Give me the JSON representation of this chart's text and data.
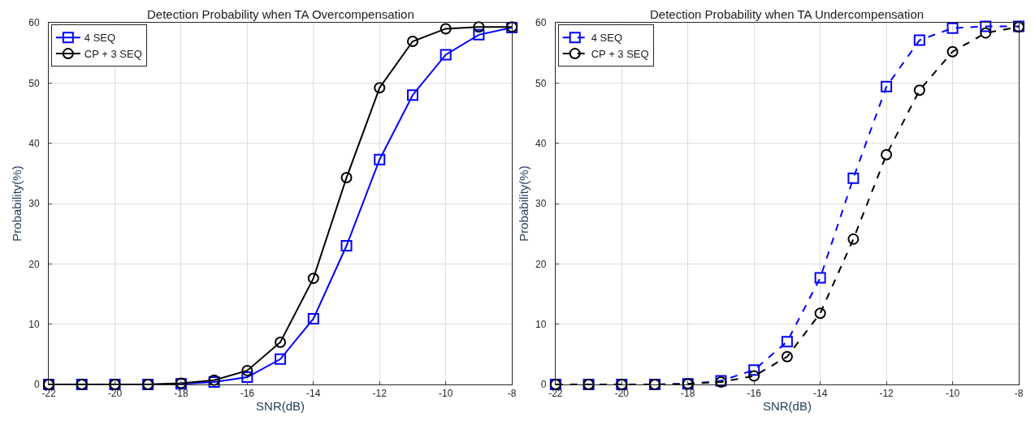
{
  "chart_data": [
    {
      "type": "line",
      "title": "Detection Probability when TA Overcompensation",
      "xlabel": "SNR(dB)",
      "ylabel": "Probability(%)",
      "x": [
        -22,
        -21,
        -20,
        -19,
        -18,
        -17,
        -16,
        -15,
        -14,
        -13,
        -12,
        -11,
        -10,
        -9,
        -8
      ],
      "series": [
        {
          "name": "4 SEQ",
          "color": "#0000ff",
          "marker": "square",
          "values": [
            0,
            0,
            0,
            0,
            0.1,
            0.4,
            1.2,
            4.2,
            10.9,
            23,
            37.3,
            48,
            54.7,
            58,
            59.2
          ]
        },
        {
          "name": "CP + 3 SEQ",
          "color": "#000000",
          "marker": "circle",
          "values": [
            0,
            0,
            0,
            0,
            0.2,
            0.7,
            2.3,
            7,
            17.6,
            34.3,
            49.2,
            56.9,
            59,
            59.3,
            59.3
          ]
        }
      ],
      "xlim": [
        -22,
        -8
      ],
      "xticks": [
        -22,
        -20,
        -18,
        -16,
        -14,
        -12,
        -10,
        -8
      ],
      "ylim": [
        0,
        60
      ],
      "yticks": [
        0,
        10,
        20,
        30,
        40,
        50,
        60
      ],
      "grid": true,
      "legend": "top left",
      "line_style": "solid"
    },
    {
      "type": "line",
      "title": "Detection Probability when TA Undercompensation",
      "xlabel": "SNR(dB)",
      "ylabel": "Probability(%)",
      "x": [
        -22,
        -21,
        -20,
        -19,
        -18,
        -17,
        -16,
        -15,
        -14,
        -13,
        -12,
        -11,
        -10,
        -9,
        -8
      ],
      "series": [
        {
          "name": "4 SEQ",
          "color": "#0000ff",
          "marker": "square",
          "values": [
            0,
            0,
            0,
            0,
            0.1,
            0.6,
            2.4,
            7.1,
            17.7,
            34.2,
            49.4,
            57.1,
            59.1,
            59.4,
            59.4
          ]
        },
        {
          "name": "CP + 3 SEQ",
          "color": "#000000",
          "marker": "circle",
          "values": [
            0,
            0,
            0,
            0,
            0.1,
            0.4,
            1.4,
            4.6,
            11.8,
            24.1,
            38.1,
            48.8,
            55.2,
            58.3,
            59.3
          ]
        }
      ],
      "xlim": [
        -22,
        -8
      ],
      "xticks": [
        -22,
        -20,
        -18,
        -16,
        -14,
        -12,
        -10,
        -8
      ],
      "ylim": [
        0,
        60
      ],
      "yticks": [
        0,
        10,
        20,
        30,
        40,
        50,
        60
      ],
      "grid": true,
      "legend": "top left",
      "line_style": "dashed"
    }
  ]
}
